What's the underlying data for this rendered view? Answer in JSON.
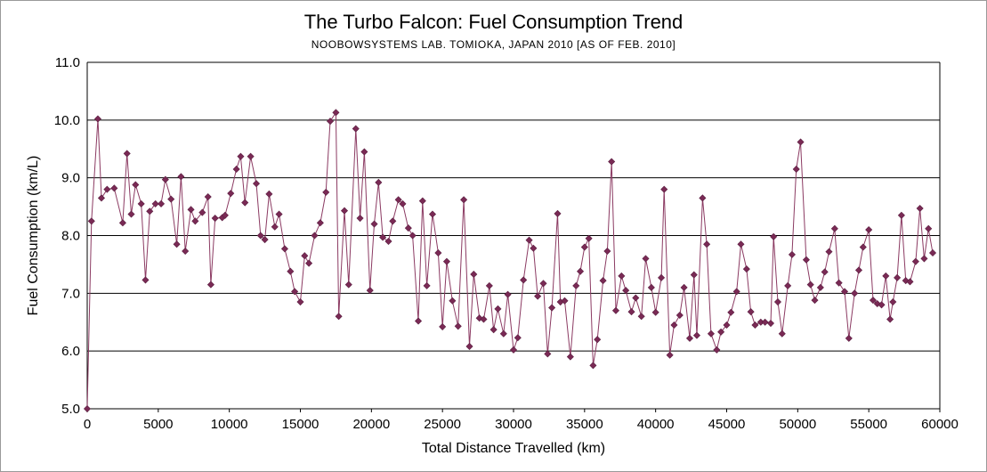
{
  "chart_data": {
    "type": "line",
    "title": "The Turbo Falcon: Fuel Consumption Trend",
    "subtitle": "NOOBOWSYSTEMS LAB. TOMIOKA, JAPAN 2010 [AS OF FEB. 2010]",
    "xlabel": "Total Distance Travelled (km)",
    "ylabel": "Fuel Consumption (km/L)",
    "xlim": [
      0,
      60000
    ],
    "ylim": [
      5.0,
      11.0
    ],
    "xticks": [
      "0",
      "5000",
      "10000",
      "15000",
      "20000",
      "25000",
      "30000",
      "35000",
      "40000",
      "45000",
      "50000",
      "55000",
      "60000"
    ],
    "yticks": [
      "5.0",
      "6.0",
      "7.0",
      "8.0",
      "9.0",
      "10.0",
      "11.0"
    ],
    "grid": "horizontal",
    "colors": {
      "line": "#8b3a62",
      "marker": "#7a2a55",
      "grid": "#000000",
      "axis": "#000000"
    },
    "series": [
      {
        "points": [
          [
            0,
            5.0
          ],
          [
            300,
            8.25
          ],
          [
            750,
            10.02
          ],
          [
            1000,
            8.65
          ],
          [
            1400,
            8.8
          ],
          [
            1900,
            8.82
          ],
          [
            2500,
            8.22
          ],
          [
            2800,
            9.42
          ],
          [
            3100,
            8.37
          ],
          [
            3400,
            8.88
          ],
          [
            3800,
            8.55
          ],
          [
            4100,
            7.23
          ],
          [
            4400,
            8.42
          ],
          [
            4800,
            8.55
          ],
          [
            5200,
            8.55
          ],
          [
            5500,
            8.97
          ],
          [
            5900,
            8.63
          ],
          [
            6300,
            7.85
          ],
          [
            6600,
            9.02
          ],
          [
            6900,
            7.73
          ],
          [
            7300,
            8.45
          ],
          [
            7600,
            8.25
          ],
          [
            8100,
            8.4
          ],
          [
            8500,
            8.67
          ],
          [
            8700,
            7.15
          ],
          [
            9000,
            8.3
          ],
          [
            9500,
            8.31
          ],
          [
            9700,
            8.35
          ],
          [
            10100,
            8.73
          ],
          [
            10500,
            9.15
          ],
          [
            10800,
            9.37
          ],
          [
            11100,
            8.57
          ],
          [
            11500,
            9.37
          ],
          [
            11900,
            8.9
          ],
          [
            12200,
            8.0
          ],
          [
            12500,
            7.93
          ],
          [
            12800,
            8.72
          ],
          [
            13200,
            8.15
          ],
          [
            13500,
            8.37
          ],
          [
            13900,
            7.77
          ],
          [
            14300,
            7.38
          ],
          [
            14600,
            7.03
          ],
          [
            15000,
            6.85
          ],
          [
            15300,
            7.65
          ],
          [
            15600,
            7.52
          ],
          [
            16000,
            8.0
          ],
          [
            16400,
            8.22
          ],
          [
            16800,
            8.75
          ],
          [
            17100,
            9.98
          ],
          [
            17500,
            10.13
          ],
          [
            17700,
            6.6
          ],
          [
            18100,
            8.43
          ],
          [
            18400,
            7.15
          ],
          [
            18900,
            9.85
          ],
          [
            19200,
            8.3
          ],
          [
            19500,
            9.45
          ],
          [
            19900,
            7.05
          ],
          [
            20200,
            8.2
          ],
          [
            20500,
            8.92
          ],
          [
            20800,
            7.97
          ],
          [
            21200,
            7.9
          ],
          [
            21500,
            8.25
          ],
          [
            21900,
            8.62
          ],
          [
            22200,
            8.55
          ],
          [
            22600,
            8.13
          ],
          [
            22900,
            8.0
          ],
          [
            23300,
            6.52
          ],
          [
            23600,
            8.6
          ],
          [
            23900,
            7.13
          ],
          [
            24300,
            8.37
          ],
          [
            24700,
            7.7
          ],
          [
            25000,
            6.42
          ],
          [
            25300,
            7.55
          ],
          [
            25700,
            6.87
          ],
          [
            26100,
            6.43
          ],
          [
            26500,
            8.62
          ],
          [
            26900,
            6.08
          ],
          [
            27200,
            7.33
          ],
          [
            27600,
            6.57
          ],
          [
            27900,
            6.55
          ],
          [
            28300,
            7.13
          ],
          [
            28600,
            6.37
          ],
          [
            28900,
            6.73
          ],
          [
            29300,
            6.3
          ],
          [
            29600,
            6.98
          ],
          [
            30000,
            6.02
          ],
          [
            30300,
            6.23
          ],
          [
            30700,
            7.23
          ],
          [
            31100,
            7.92
          ],
          [
            31400,
            7.78
          ],
          [
            31700,
            6.95
          ],
          [
            32100,
            7.17
          ],
          [
            32400,
            5.95
          ],
          [
            32700,
            6.75
          ],
          [
            33100,
            8.38
          ],
          [
            33300,
            6.85
          ],
          [
            33600,
            6.87
          ],
          [
            34000,
            5.9
          ],
          [
            34400,
            7.13
          ],
          [
            34700,
            7.38
          ],
          [
            35000,
            7.8
          ],
          [
            35300,
            7.95
          ],
          [
            35600,
            5.75
          ],
          [
            35900,
            6.2
          ],
          [
            36300,
            7.22
          ],
          [
            36600,
            7.73
          ],
          [
            36900,
            9.28
          ],
          [
            37200,
            6.7
          ],
          [
            37600,
            7.3
          ],
          [
            37900,
            7.05
          ],
          [
            38300,
            6.68
          ],
          [
            38600,
            6.92
          ],
          [
            39000,
            6.6
          ],
          [
            39300,
            7.6
          ],
          [
            39700,
            7.1
          ],
          [
            40000,
            6.67
          ],
          [
            40400,
            7.27
          ],
          [
            40600,
            8.8
          ],
          [
            41000,
            5.93
          ],
          [
            41300,
            6.45
          ],
          [
            41700,
            6.62
          ],
          [
            42000,
            7.1
          ],
          [
            42400,
            6.22
          ],
          [
            42700,
            7.32
          ],
          [
            42900,
            6.27
          ],
          [
            43300,
            8.65
          ],
          [
            43600,
            7.85
          ],
          [
            43900,
            6.3
          ],
          [
            44300,
            6.02
          ],
          [
            44600,
            6.33
          ],
          [
            45000,
            6.45
          ],
          [
            45300,
            6.67
          ],
          [
            45700,
            7.03
          ],
          [
            46000,
            7.85
          ],
          [
            46400,
            7.42
          ],
          [
            46700,
            6.68
          ],
          [
            47000,
            6.45
          ],
          [
            47400,
            6.5
          ],
          [
            47700,
            6.5
          ],
          [
            48100,
            6.48
          ],
          [
            48300,
            7.98
          ],
          [
            48600,
            6.85
          ],
          [
            48900,
            6.3
          ],
          [
            49300,
            7.13
          ],
          [
            49600,
            7.67
          ],
          [
            49900,
            9.15
          ],
          [
            50200,
            9.62
          ],
          [
            50600,
            7.58
          ],
          [
            50900,
            7.15
          ],
          [
            51200,
            6.88
          ],
          [
            51600,
            7.1
          ],
          [
            51900,
            7.37
          ],
          [
            52200,
            7.72
          ],
          [
            52600,
            8.12
          ],
          [
            52900,
            7.18
          ],
          [
            53300,
            7.03
          ],
          [
            53600,
            6.22
          ],
          [
            54000,
            7.0
          ],
          [
            54300,
            7.4
          ],
          [
            54600,
            7.8
          ],
          [
            55000,
            8.1
          ],
          [
            55300,
            6.88
          ],
          [
            55600,
            6.82
          ],
          [
            55900,
            6.8
          ],
          [
            56200,
            7.3
          ],
          [
            56500,
            6.55
          ],
          [
            56700,
            6.85
          ],
          [
            57000,
            7.27
          ],
          [
            57300,
            8.35
          ],
          [
            57600,
            7.22
          ],
          [
            57900,
            7.2
          ],
          [
            58300,
            7.55
          ],
          [
            58600,
            8.47
          ],
          [
            58900,
            7.6
          ],
          [
            59200,
            8.12
          ],
          [
            59500,
            7.7
          ]
        ]
      }
    ]
  }
}
